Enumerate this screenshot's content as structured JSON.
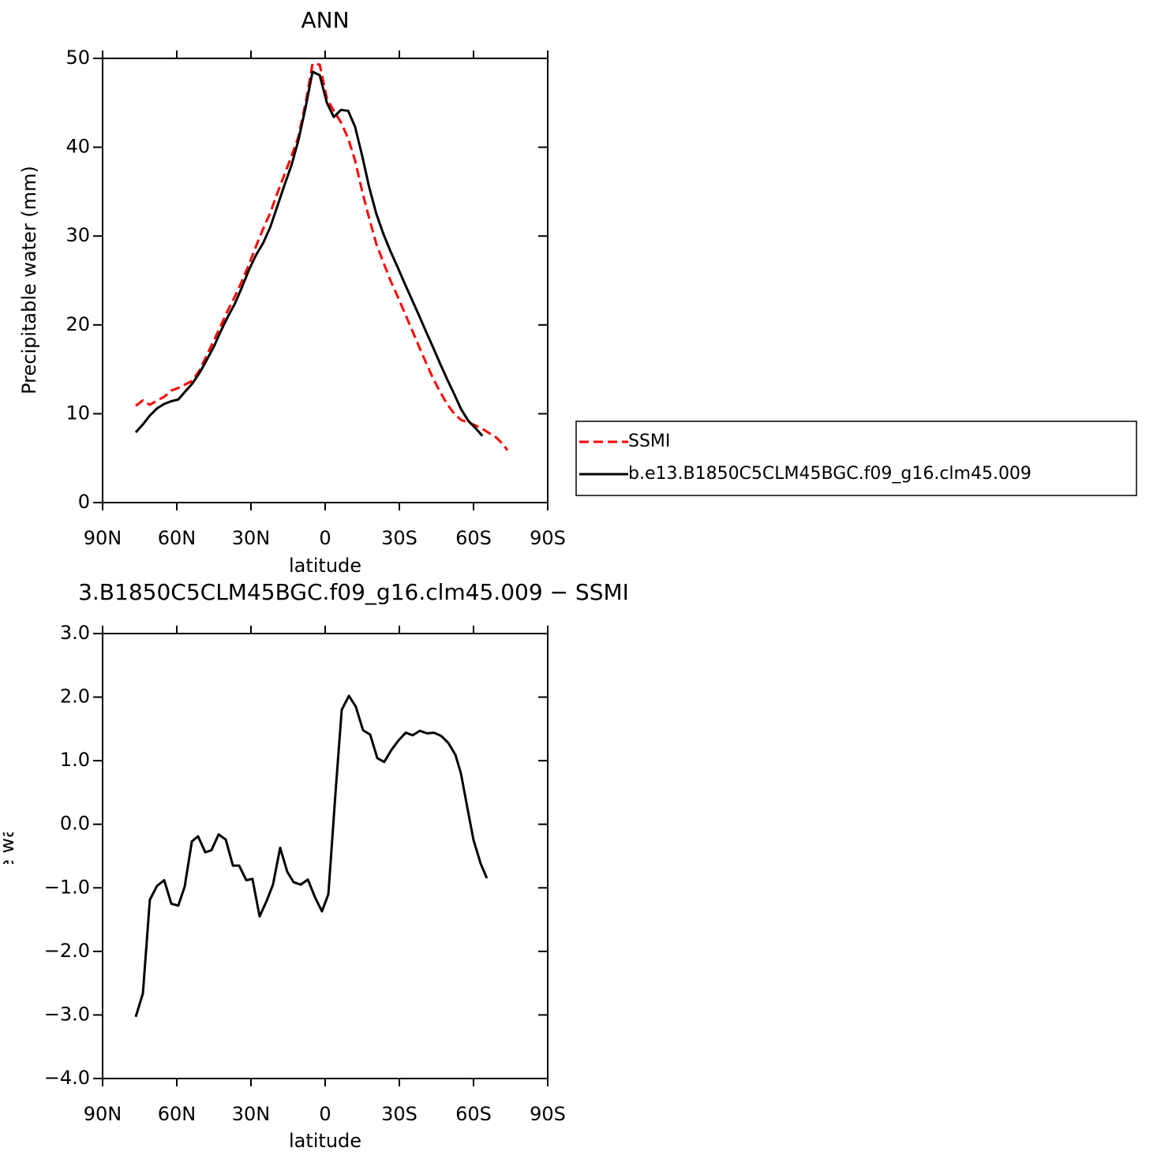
{
  "chart_data": [
    {
      "type": "line",
      "title": "ANN",
      "xlabel": "latitude",
      "ylabel": "Precipitable water (mm)",
      "x": [
        76.6,
        73.7,
        70.9,
        68.0,
        65.1,
        62.3,
        59.4,
        56.6,
        53.7,
        50.8,
        48.0,
        45.1,
        42.2,
        39.4,
        36.5,
        33.7,
        30.8,
        27.9,
        25.1,
        22.2,
        19.4,
        16.5,
        13.6,
        10.8,
        7.9,
        5.1,
        2.2,
        -0.7,
        -3.5,
        -6.4,
        -9.3,
        -12.1,
        -15.0,
        -17.8,
        -20.7,
        -23.6,
        -26.4,
        -29.3,
        -32.1,
        -35.0,
        -37.9,
        -40.7,
        -43.6,
        -46.4,
        -49.3,
        -52.2,
        -55.0,
        -57.9,
        -60.7,
        -63.6,
        -66.4,
        -69.3,
        -72.1,
        -73.7
      ],
      "series": [
        {
          "name": "SSMI",
          "color": "#ff0000",
          "line_style": "dashed",
          "values": [
            10.9,
            11.5,
            11.0,
            11.5,
            11.9,
            12.6,
            12.9,
            13.3,
            13.7,
            14.9,
            16.5,
            18.2,
            19.9,
            21.6,
            23.2,
            24.9,
            26.8,
            28.9,
            30.8,
            32.6,
            34.8,
            36.9,
            39.0,
            41.2,
            45.0,
            49.4,
            49.3,
            45.5,
            44.1,
            42.8,
            41.0,
            38.5,
            35.0,
            32.0,
            29.1,
            27.0,
            25.0,
            23.2,
            21.4,
            19.5,
            17.6,
            15.8,
            14.0,
            12.5,
            11.1,
            10.0,
            9.3,
            9.0,
            8.7,
            8.3,
            7.8,
            7.3,
            6.5,
            5.9
          ]
        },
        {
          "name": "b.e13.B1850C5CLM45BGC.f09_g16.clm45.009",
          "color": "#000000",
          "line_style": "solid",
          "values": [
            7.9,
            8.8,
            9.8,
            10.6,
            11.1,
            11.4,
            11.6,
            12.5,
            13.4,
            14.6,
            16.0,
            17.5,
            19.3,
            20.9,
            22.4,
            24.2,
            26.2,
            27.9,
            29.2,
            31.0,
            33.3,
            35.7,
            38.0,
            40.8,
            44.5,
            48.5,
            48.1,
            45.0,
            43.4,
            44.2,
            44.1,
            42.3,
            39.0,
            35.5,
            32.5,
            30.2,
            28.3,
            26.5,
            24.7,
            22.9,
            21.1,
            19.3,
            17.5,
            15.7,
            13.9,
            12.2,
            10.5,
            9.2,
            8.4,
            7.5,
            null,
            null,
            null,
            null
          ]
        }
      ],
      "xlim": [
        90,
        -90
      ],
      "xticks": [
        {
          "value": 90,
          "label": "90N"
        },
        {
          "value": 60,
          "label": "60N"
        },
        {
          "value": 30,
          "label": "30N"
        },
        0,
        {
          "value": -30,
          "label": "30S"
        },
        {
          "value": -60,
          "label": "60S"
        },
        {
          "value": -90,
          "label": "90S"
        }
      ],
      "ylim": [
        0,
        50
      ],
      "yticks": [
        0,
        10,
        20,
        30,
        40,
        50
      ],
      "legend": "right"
    },
    {
      "type": "line",
      "title": "3.B1850C5CLM45BGC.f09_g16.clm45.009 − SSMI",
      "xlabel": "latitude",
      "ylabel": "Precipitable water (mm)",
      "x": [
        76.6,
        73.7,
        70.9,
        68.0,
        65.1,
        62.2,
        59.4,
        56.8,
        53.9,
        51.4,
        48.5,
        46.0,
        43.1,
        40.2,
        37.3,
        34.8,
        31.9,
        29.4,
        26.5,
        23.6,
        21.1,
        18.2,
        15.3,
        12.8,
        9.9,
        7.0,
        4.1,
        1.3,
        -1.3,
        -4.1,
        -6.7,
        -9.6,
        -12.4,
        -15.3,
        -18.2,
        -21.1,
        -23.9,
        -26.8,
        -29.7,
        -32.6,
        -35.4,
        -38.3,
        -41.2,
        -44.0,
        -46.9,
        -49.8,
        -52.7,
        -54.9,
        -57.5,
        -60.0,
        -62.9,
        -65.4
      ],
      "values": [
        -3.03,
        -2.66,
        -1.19,
        -0.97,
        -0.88,
        -1.25,
        -1.28,
        -0.98,
        -0.27,
        -0.19,
        -0.44,
        -0.41,
        -0.16,
        -0.24,
        -0.65,
        -0.65,
        -0.88,
        -0.86,
        -1.45,
        -1.2,
        -0.95,
        -0.37,
        -0.75,
        -0.91,
        -0.95,
        -0.87,
        -1.15,
        -1.37,
        -1.1,
        0.45,
        1.8,
        2.02,
        1.85,
        1.48,
        1.41,
        1.04,
        0.98,
        1.17,
        1.32,
        1.44,
        1.4,
        1.47,
        1.43,
        1.44,
        1.39,
        1.28,
        1.09,
        0.8,
        0.26,
        -0.25,
        -0.62,
        -0.85
      ],
      "color": "#000000",
      "xlim": [
        90,
        -90
      ],
      "xticks": [
        {
          "value": 90,
          "label": "90N"
        },
        {
          "value": 60,
          "label": "60N"
        },
        {
          "value": 30,
          "label": "30N"
        },
        0,
        {
          "value": -30,
          "label": "30S"
        },
        {
          "value": -60,
          "label": "60S"
        },
        {
          "value": -90,
          "label": "90S"
        }
      ],
      "ylim": [
        -4,
        3
      ],
      "yticks": [
        {
          "value": -4,
          "label": "−4.0"
        },
        {
          "value": -3,
          "label": "−3.0"
        },
        {
          "value": -2,
          "label": "−2.0"
        },
        {
          "value": -1,
          "label": "−1.0"
        },
        {
          "value": 0,
          "label": "0.0"
        },
        {
          "value": 1,
          "label": "1.0"
        },
        {
          "value": 2,
          "label": "2.0"
        },
        {
          "value": 3,
          "label": "3.0"
        }
      ]
    }
  ]
}
